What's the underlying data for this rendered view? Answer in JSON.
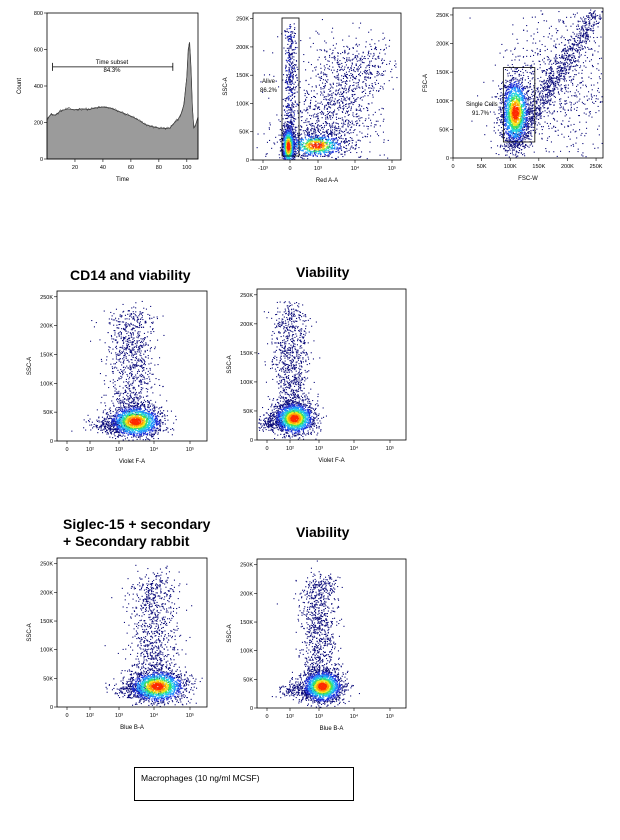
{
  "headings": {
    "cd14": "CD14 and viability",
    "viability_mid": "Viability",
    "siglec": "Siglec-15 + secondary\n+ Secondary rabbit",
    "viability_bottom": "Viability"
  },
  "caption": "Macrophages (10 ng/ml MCSF)",
  "colors": {
    "histogram_fill": "#9b9b9b",
    "density_low": "#0b0b7a",
    "density_mid": "#1fa8ff",
    "density_high": "#ff2a00"
  },
  "chart_data": [
    {
      "id": "time",
      "type": "histogram",
      "xlabel": "Time",
      "ylabel": "Count",
      "xlim": [
        0,
        108
      ],
      "ylim": [
        0,
        800
      ],
      "xticks": [
        "20",
        "40",
        "60",
        "80",
        "100"
      ],
      "yticks": [
        "0",
        "200",
        "400",
        "600",
        "800"
      ],
      "gate": {
        "name": "Time subset",
        "value": "84.3%",
        "x_range": [
          4,
          90
        ]
      },
      "series": [
        {
          "x": [
            0,
            3,
            6,
            10,
            15,
            20,
            25,
            30,
            35,
            40,
            45,
            50,
            55,
            60,
            65,
            70,
            75,
            80,
            85,
            88,
            90,
            92,
            94,
            96,
            98,
            100,
            101,
            102,
            103,
            104,
            105,
            106,
            108
          ],
          "y": [
            220,
            245,
            240,
            265,
            275,
            270,
            275,
            272,
            280,
            285,
            280,
            265,
            250,
            235,
            215,
            190,
            178,
            170,
            168,
            170,
            190,
            205,
            220,
            250,
            300,
            450,
            600,
            640,
            500,
            280,
            170,
            180,
            230
          ]
        }
      ]
    },
    {
      "id": "alive",
      "type": "scatter",
      "xlabel": "Red A-A",
      "ylabel": "SSC-A",
      "ylim": [
        0,
        260000
      ],
      "xticks": [
        "-10³",
        "0",
        "10³",
        "10⁴",
        "10⁵"
      ],
      "yticks": [
        "0",
        "50K",
        "100K",
        "150K",
        "200K",
        "250K"
      ],
      "gate": {
        "name": "Alive",
        "value": "86.2%"
      },
      "clusters": [
        {
          "center": [
            "0",
            "25K"
          ],
          "label": "alive population"
        },
        {
          "center": [
            "10³",
            "60K"
          ],
          "label": "dead population"
        }
      ]
    },
    {
      "id": "singlets",
      "type": "scatter",
      "xlabel": "FSC-W",
      "ylabel": "FSC-A",
      "xlim": [
        0,
        262144
      ],
      "ylim": [
        0,
        262144
      ],
      "xticks": [
        "0",
        "50K",
        "100K",
        "150K",
        "200K",
        "250K"
      ],
      "yticks": [
        "0",
        "50K",
        "100K",
        "150K",
        "200K",
        "250K"
      ],
      "gate": {
        "name": "Single Cells",
        "value": "91.7%",
        "x_range": [
          88000,
          143000
        ],
        "y_range": [
          28000,
          158000
        ]
      }
    },
    {
      "id": "cd14",
      "type": "scatter",
      "title": "CD14 and viability",
      "xlabel": "Violet F-A",
      "ylabel": "SSC-A",
      "ylim": [
        0,
        260000
      ],
      "xticks": [
        "0",
        "10²",
        "10³",
        "10⁴",
        "10⁵"
      ],
      "yticks": [
        "0",
        "50K",
        "100K",
        "150K",
        "200K",
        "250K"
      ],
      "clusters": [
        {
          "center": [
            "10³·³",
            "35K"
          ]
        }
      ]
    },
    {
      "id": "viability1",
      "type": "scatter",
      "title": "Viability",
      "xlabel": "Violet F-A",
      "ylabel": "SSC-A",
      "ylim": [
        0,
        260000
      ],
      "xticks": [
        "0",
        "10²",
        "10³",
        "10⁴",
        "10⁵"
      ],
      "yticks": [
        "0",
        "50K",
        "100K",
        "150K",
        "200K",
        "250K"
      ],
      "clusters": [
        {
          "center": [
            "10²·⁴",
            "35K"
          ]
        }
      ]
    },
    {
      "id": "siglec",
      "type": "scatter",
      "title": "Siglec-15 + secondary + Secondary rabbit",
      "xlabel": "Blue B-A",
      "ylabel": "SSC-A",
      "ylim": [
        0,
        260000
      ],
      "xticks": [
        "0",
        "10²",
        "10³",
        "10⁴",
        "10⁵"
      ],
      "yticks": [
        "0",
        "50K",
        "100K",
        "150K",
        "200K",
        "250K"
      ],
      "clusters": [
        {
          "center": [
            "10³·⁷",
            "35K"
          ]
        }
      ]
    },
    {
      "id": "viability2",
      "type": "scatter",
      "title": "Viability",
      "xlabel": "Blue B-A",
      "ylabel": "SSC-A",
      "ylim": [
        0,
        260000
      ],
      "xticks": [
        "0",
        "10²",
        "10³",
        "10⁴",
        "10⁵"
      ],
      "yticks": [
        "0",
        "50K",
        "100K",
        "150K",
        "200K",
        "250K"
      ],
      "clusters": [
        {
          "center": [
            "10³",
            "35K"
          ]
        }
      ]
    }
  ]
}
